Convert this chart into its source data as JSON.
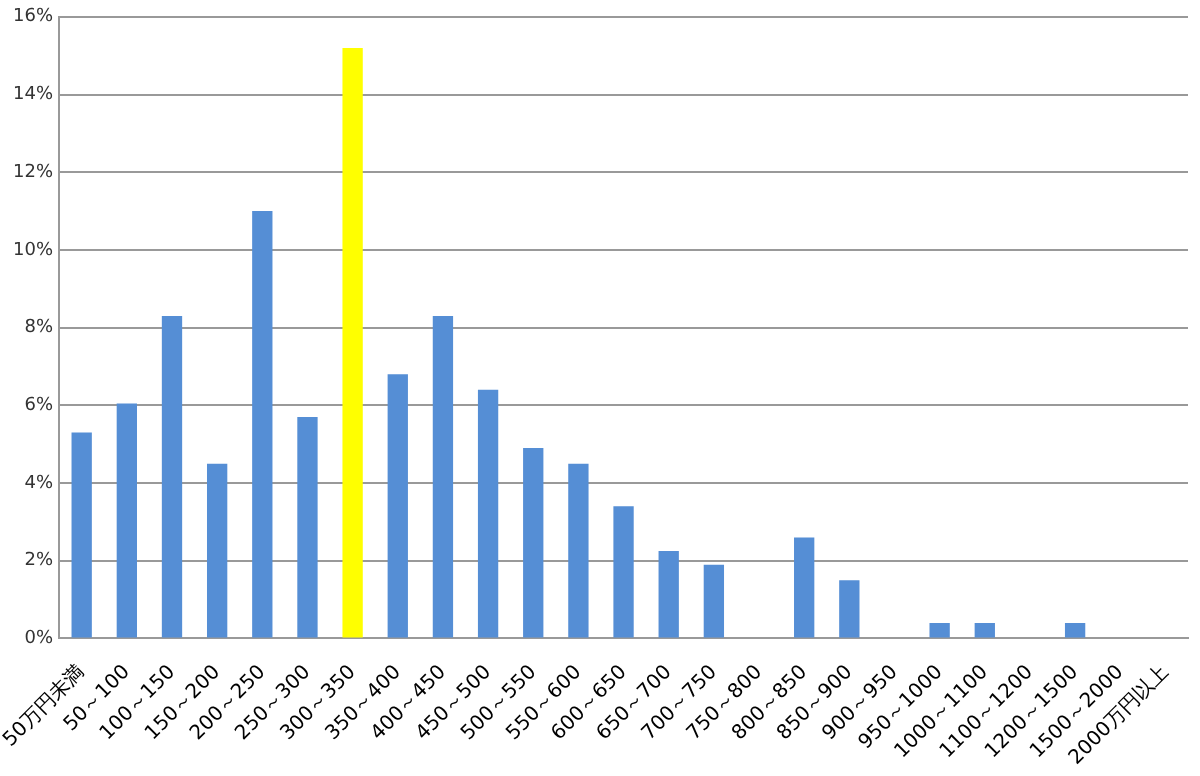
{
  "chart_data": {
    "type": "bar",
    "categories": [
      "50万円未満",
      "50～100",
      "100～150",
      "150～200",
      "200～250",
      "250～300",
      "300～350",
      "350～400",
      "400～450",
      "450～500",
      "500～550",
      "550～600",
      "600～650",
      "650～700",
      "700～750",
      "750～800",
      "800～850",
      "850～900",
      "900～950",
      "950～1000",
      "1000～1100",
      "1100～1200",
      "1200～1500",
      "1500～2000",
      "2000万円以上"
    ],
    "values": [
      5.3,
      6.05,
      8.3,
      4.5,
      11.0,
      5.7,
      15.2,
      6.8,
      8.3,
      6.4,
      4.9,
      4.5,
      3.4,
      2.25,
      1.9,
      0,
      2.6,
      1.5,
      0,
      0.4,
      0.4,
      0,
      0.4,
      0,
      0
    ],
    "colors": [
      "#558ed5",
      "#558ed5",
      "#558ed5",
      "#558ed5",
      "#558ed5",
      "#558ed5",
      "#ffff00",
      "#558ed5",
      "#558ed5",
      "#558ed5",
      "#558ed5",
      "#558ed5",
      "#558ed5",
      "#558ed5",
      "#558ed5",
      "#558ed5",
      "#558ed5",
      "#558ed5",
      "#558ed5",
      "#558ed5",
      "#558ed5",
      "#558ed5",
      "#558ed5",
      "#558ed5",
      "#558ed5"
    ],
    "ylim": [
      0,
      16
    ],
    "yticks": [
      {
        "value": 0,
        "label": "0%"
      },
      {
        "value": 2,
        "label": "2%"
      },
      {
        "value": 4,
        "label": "4%"
      },
      {
        "value": 6,
        "label": "6%"
      },
      {
        "value": 8,
        "label": "8%"
      },
      {
        "value": 10,
        "label": "10%"
      },
      {
        "value": 12,
        "label": "12%"
      },
      {
        "value": 14,
        "label": "14%"
      },
      {
        "value": 16,
        "label": "16%"
      }
    ],
    "grid": "y",
    "legend": false
  }
}
